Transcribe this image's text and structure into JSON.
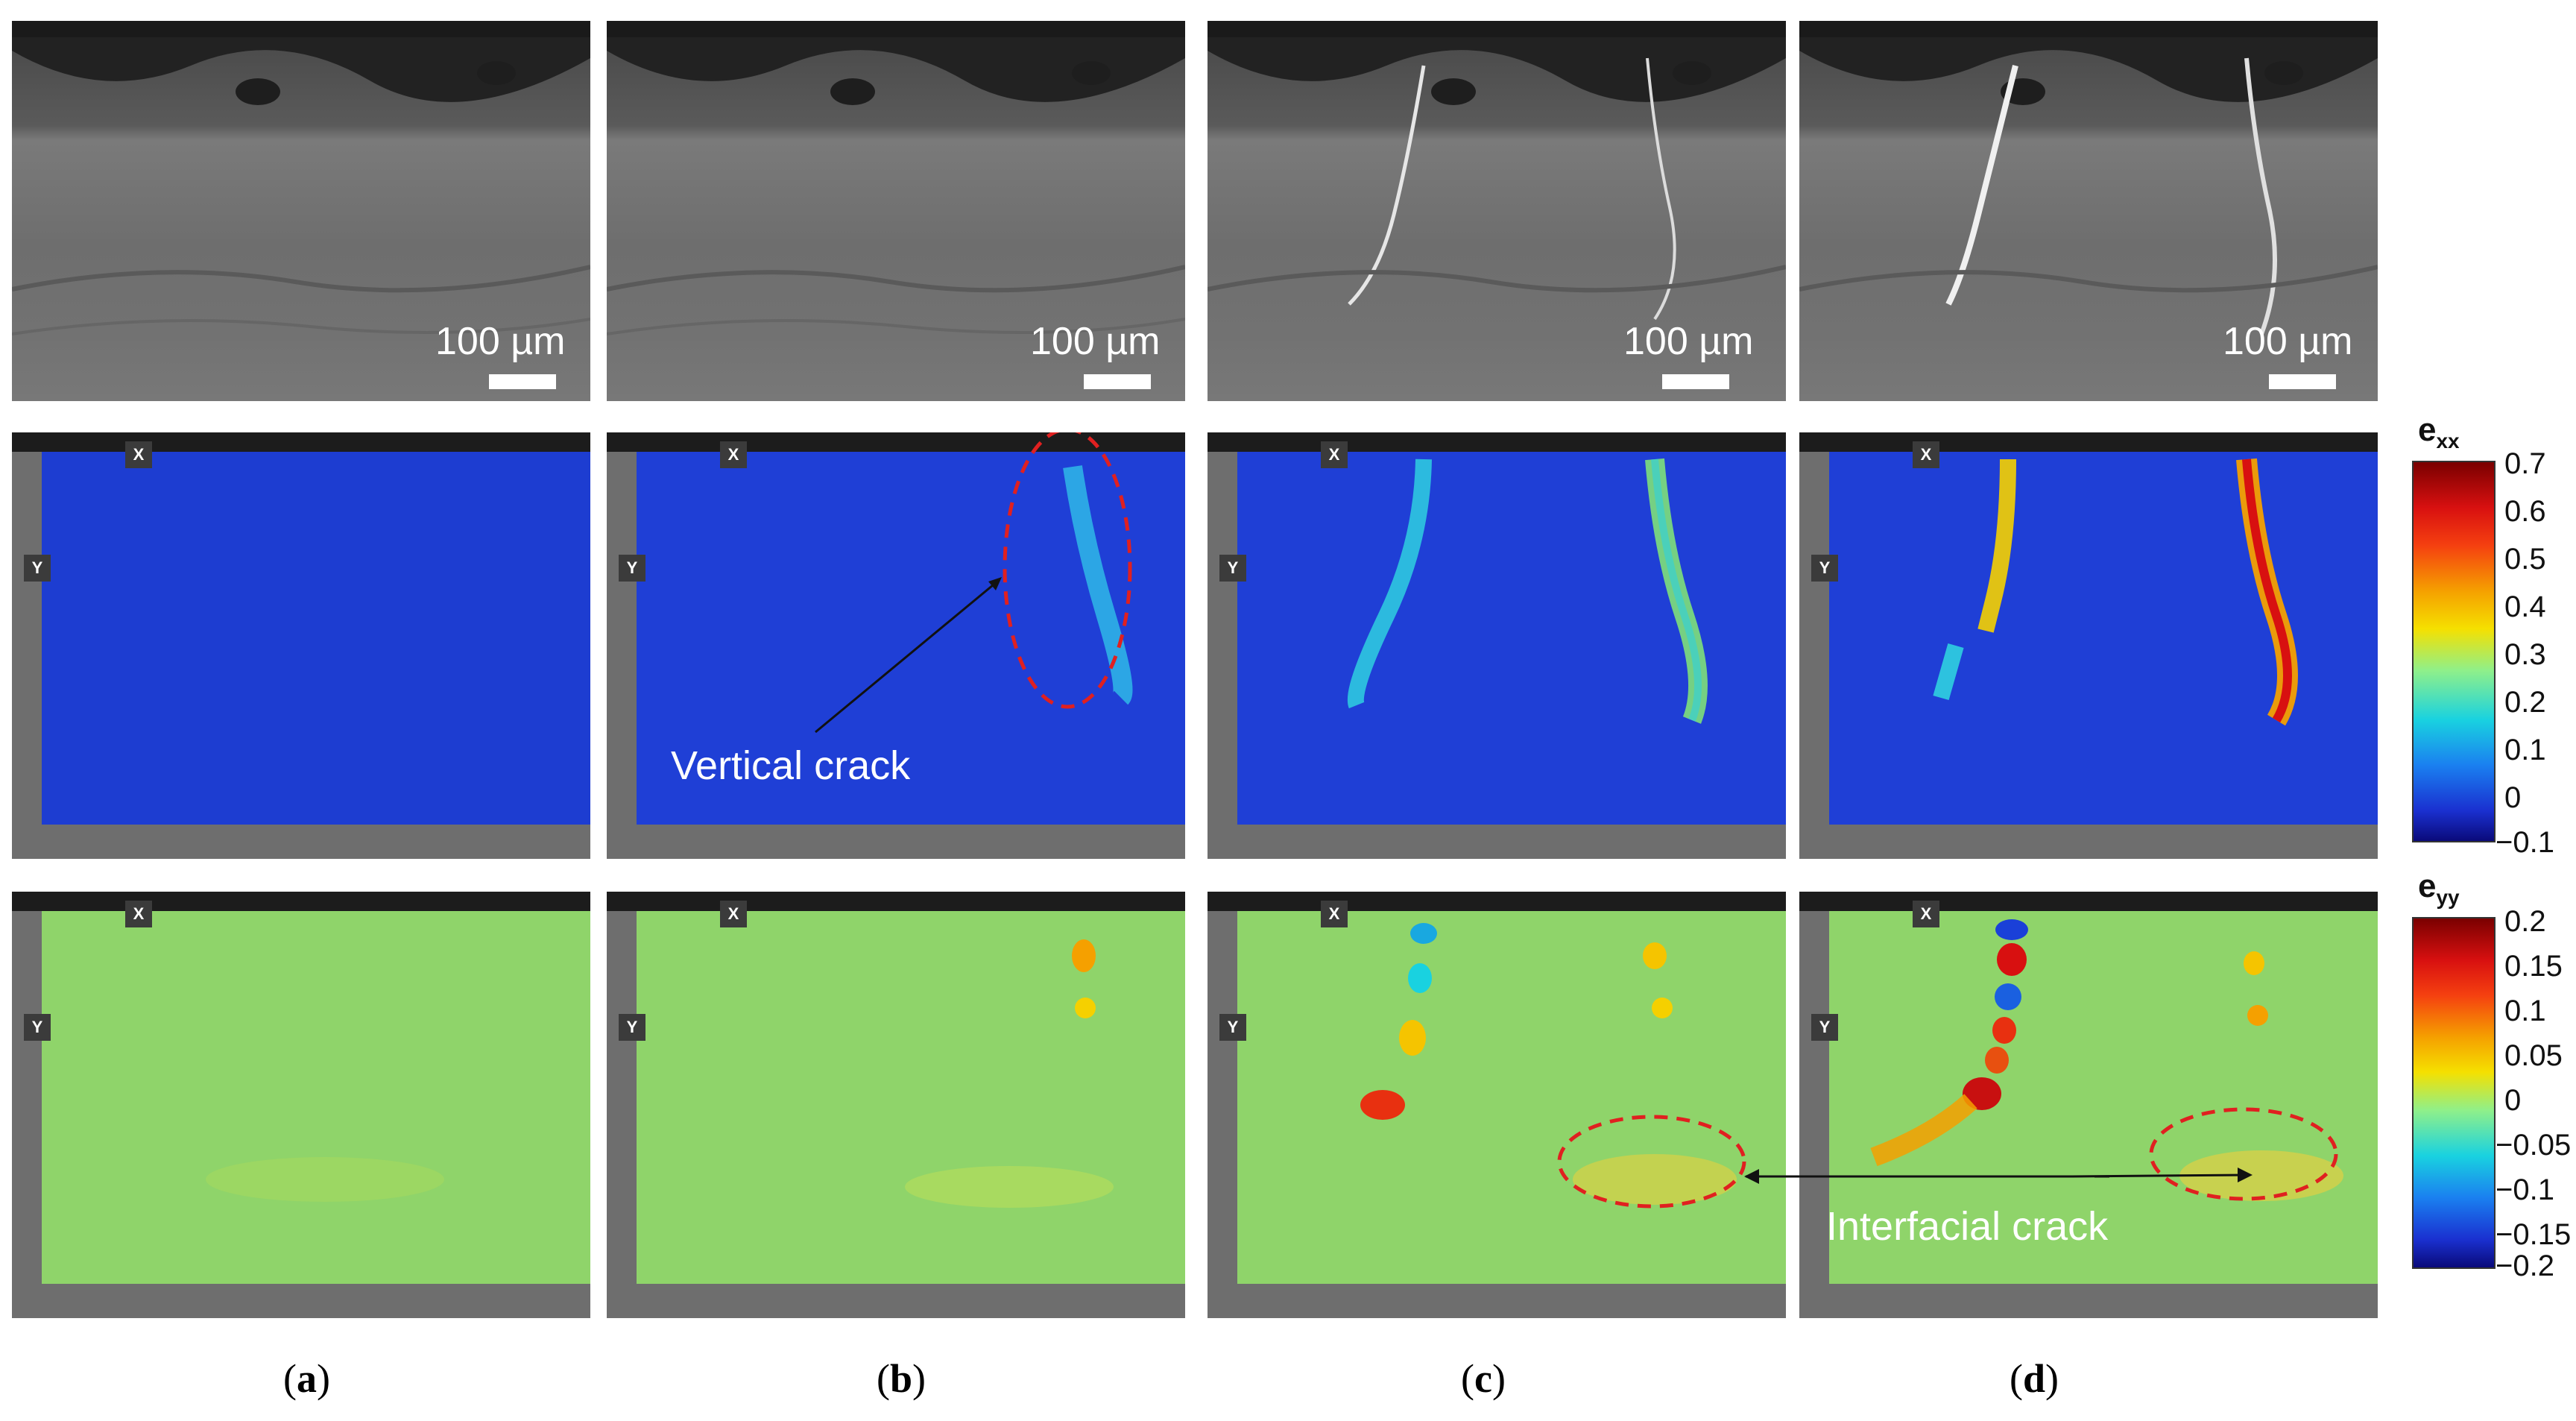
{
  "scale_bar_label": "100 µm",
  "axis_tags": {
    "x": "X",
    "y": "Y"
  },
  "annotations": {
    "vertical_crack": "Vertical crack",
    "interfacial_crack": "Interfacial crack"
  },
  "subfigure_labels": [
    {
      "open": "(",
      "letter": "a",
      "close": ")"
    },
    {
      "open": "(",
      "letter": "b",
      "close": ")"
    },
    {
      "open": "(",
      "letter": "c",
      "close": ")"
    },
    {
      "open": "(",
      "letter": "d",
      "close": ")"
    }
  ],
  "colorbar_exx": {
    "symbol": "e",
    "subscript": "xx",
    "ticks": [
      "0.7",
      "0.6",
      "0.5",
      "0.4",
      "0.3",
      "0.2",
      "0.1",
      "0",
      "−0.1"
    ],
    "min": -0.1,
    "max": 0.7
  },
  "colorbar_eyy": {
    "symbol": "e",
    "subscript": "yy",
    "ticks": [
      "0.2",
      "0.15",
      "0.1",
      "0.05",
      "0",
      "−0.05",
      "−0.1",
      "−0.15",
      "−0.2"
    ],
    "min": -0.2,
    "max": 0.2
  },
  "colors": {
    "exx_background": "#1f3fd6",
    "eyy_background": "#8fd46a",
    "annotation_ellipse": "#e02020",
    "hot": "#d81010",
    "warm": "#f5c400",
    "cool": "#19d2e0"
  }
}
